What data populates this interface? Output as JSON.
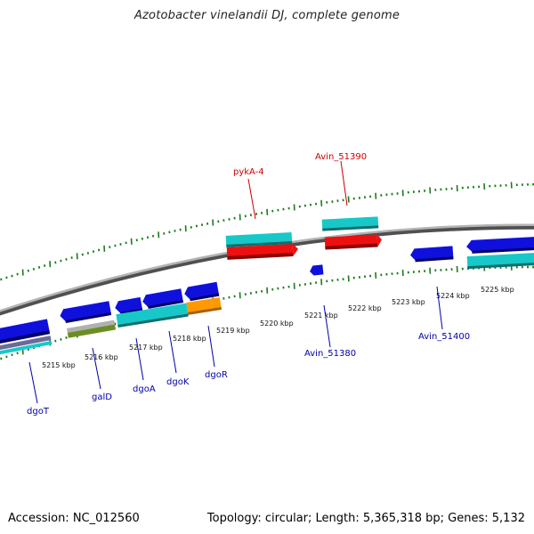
{
  "title": "Azotobacter vinelandii DJ, complete genome",
  "footer": {
    "accession": "Accession: NC_012560",
    "summary": "Topology: circular; Length: 5,365,318 bp; Genes: 5,132"
  },
  "colors": {
    "backbone": "#8a8a8a",
    "tick": "#1e7a1e",
    "label_forward": "#cc0000",
    "label_reverse": "#0000aa",
    "feature_blue": "#1010dd",
    "feature_cyan": "#18c8c8",
    "feature_red": "#ee1010",
    "feature_orange": "#ff9900",
    "feature_olive": "#6b8e23",
    "feature_gray": "#b0b0b0"
  },
  "scale": {
    "unit": "kbp",
    "labels": [
      "5215 kbp",
      "5216 kbp",
      "5217 kbp",
      "5218 kbp",
      "5219 kbp",
      "5220 kbp",
      "5221 kbp",
      "5222 kbp",
      "5223 kbp",
      "5224 kbp",
      "5225 kbp"
    ]
  },
  "gene_labels": {
    "forward": [
      "pykA-4",
      "Avin_51390"
    ],
    "reverse": [
      "dgoT",
      "galD",
      "dgoA",
      "dgoK",
      "dgoR",
      "Avin_51380",
      "Avin_51400"
    ]
  }
}
